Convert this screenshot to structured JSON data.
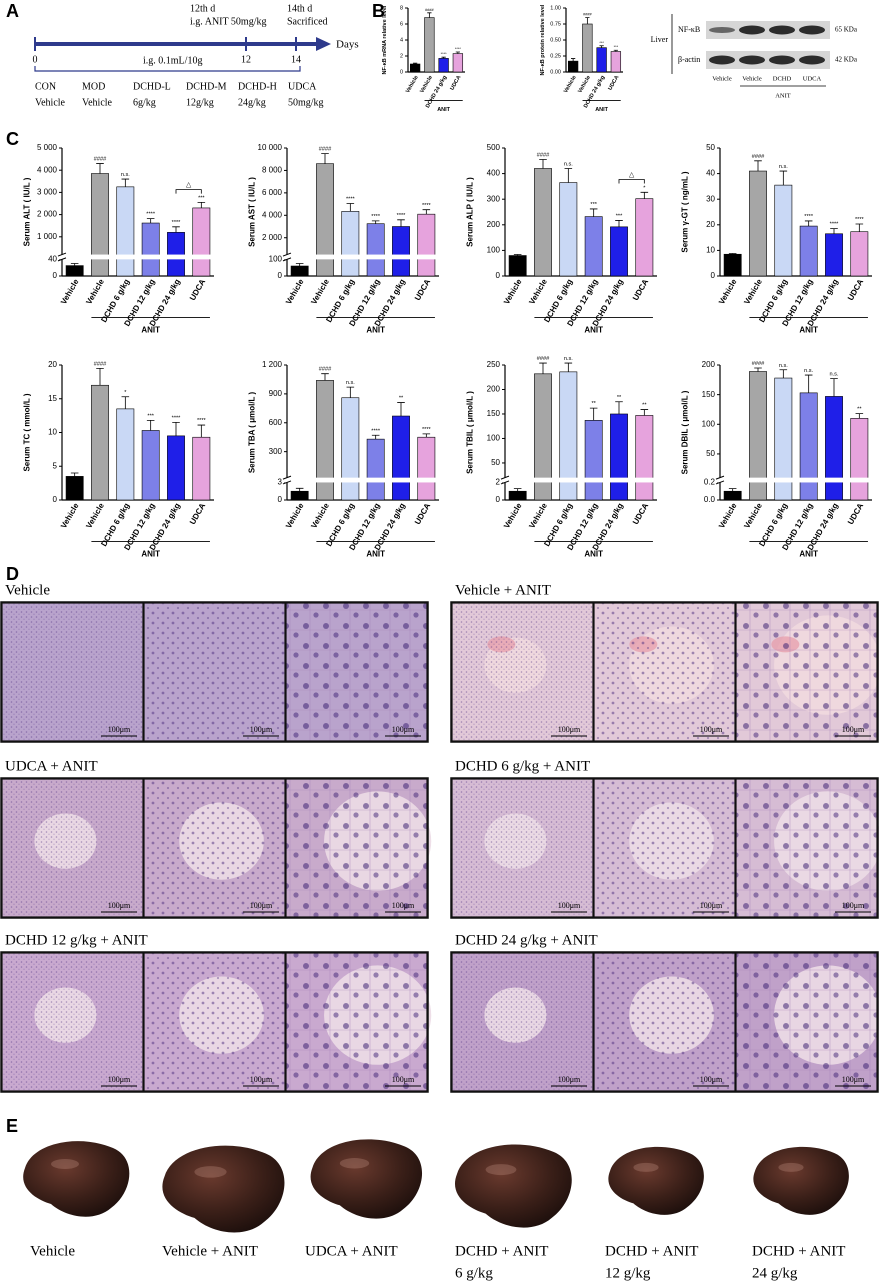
{
  "panel_labels": [
    "A",
    "B",
    "C",
    "D",
    "E"
  ],
  "timeline": {
    "events": [
      {
        "day": "12th d",
        "text": "i.g. ANIT 50mg/kg"
      },
      {
        "day": "14th d",
        "text": "Sacrificed"
      }
    ],
    "axis_label": "Days",
    "ticks": [
      "0",
      "12",
      "14"
    ],
    "dosing": "i.g. 0.1mL/10g",
    "groups": [
      {
        "code": "CON",
        "treatment": "Vehicle"
      },
      {
        "code": "MOD",
        "treatment": "Vehicle"
      },
      {
        "code": "DCHD-L",
        "treatment": "6g/kg"
      },
      {
        "code": "DCHD-M",
        "treatment": "12g/kg"
      },
      {
        "code": "DCHD-H",
        "treatment": "24g/kg"
      },
      {
        "code": "UDCA",
        "treatment": "50mg/kg"
      }
    ]
  },
  "chart_data": [
    {
      "type": "bar",
      "ylabel": "NF-κB mRNA relative level",
      "categories": [
        "Vehicle",
        "Vehicle",
        "DCHD 24 g/kg",
        "UDCA"
      ],
      "group_label": "ANIT",
      "values": [
        1.0,
        6.8,
        1.7,
        2.3
      ],
      "errors": [
        0.1,
        0.6,
        0.15,
        0.2
      ],
      "significance": [
        null,
        "####",
        "****",
        "****"
      ],
      "colors": [
        "#000000",
        "#a6a6a6",
        "#1f1fe8",
        "#e6a3dd"
      ],
      "ylim": [
        0,
        8
      ],
      "yticks": [
        0,
        2,
        4,
        6,
        8
      ]
    },
    {
      "type": "bar",
      "ylabel": "NF-κB protein relative level",
      "categories": [
        "Vehicle",
        "Vehicle",
        "DCHD 24 g/kg",
        "UDCA"
      ],
      "group_label": "ANIT",
      "values": [
        0.17,
        0.75,
        0.38,
        0.32
      ],
      "errors": [
        0.04,
        0.1,
        0.03,
        0.02
      ],
      "significance": [
        null,
        "####",
        "***",
        "***"
      ],
      "colors": [
        "#000000",
        "#a6a6a6",
        "#1f1fe8",
        "#e6a3dd"
      ],
      "ylim": [
        0,
        1
      ],
      "yticks": [
        {
          "value": 0,
          "label": "0.00"
        },
        0.25,
        {
          "value": 0.5,
          "label": "0.50"
        },
        0.75,
        {
          "value": 1,
          "label": "1.00"
        }
      ]
    },
    {
      "type": "bar",
      "ylabel": "Serum ALT ( IU/L )",
      "categories": [
        "Vehicle",
        "Vehicle",
        "DCHD 6 g/kg",
        "DCHD 12 g/kg",
        "DCHD 24 g/kg",
        "UDCA"
      ],
      "group_label": "ANIT",
      "values": [
        25,
        3850,
        3250,
        1620,
        1200,
        2300
      ],
      "errors": [
        5,
        450,
        350,
        200,
        250,
        250
      ],
      "significance": [
        null,
        "####",
        "n.s.",
        "****",
        "****",
        "***"
      ],
      "annotations": [
        {
          "text": "△",
          "between": [
            "DCHD 24 g/kg",
            "UDCA"
          ]
        }
      ],
      "colors": [
        "#000000",
        "#a6a6a6",
        "#c9d8f5",
        "#7d80e8",
        "#1f1fe8",
        "#e6a3dd"
      ],
      "ylim": [
        0,
        5000
      ],
      "ybreak": [
        40,
        200
      ],
      "yticks": [
        0,
        40,
        {
          "value": 1000,
          "label": "1 000"
        },
        {
          "value": 2000,
          "label": "2 000"
        },
        {
          "value": 3000,
          "label": "3 000"
        },
        {
          "value": 4000,
          "label": "4 000"
        },
        {
          "value": 5000,
          "label": "5 000"
        }
      ]
    },
    {
      "type": "bar",
      "ylabel": "Serum AST ( IU/L )",
      "categories": [
        "Vehicle",
        "Vehicle",
        "DCHD 6 g/kg",
        "DCHD 12 g/kg",
        "DCHD 24 g/kg",
        "UDCA"
      ],
      "group_label": "ANIT",
      "values": [
        60,
        8600,
        4350,
        3250,
        3000,
        4100
      ],
      "errors": [
        15,
        900,
        700,
        250,
        600,
        400
      ],
      "significance": [
        null,
        "####",
        "****",
        "****",
        "****",
        "****"
      ],
      "colors": [
        "#000000",
        "#a6a6a6",
        "#c9d8f5",
        "#7d80e8",
        "#1f1fe8",
        "#e6a3dd"
      ],
      "ylim": [
        0,
        10000
      ],
      "ybreak": [
        100,
        500
      ],
      "yticks": [
        0,
        100,
        {
          "value": 2000,
          "label": "2 000"
        },
        {
          "value": 4000,
          "label": "4 000"
        },
        {
          "value": 6000,
          "label": "6 000"
        },
        {
          "value": 8000,
          "label": "8 000"
        },
        {
          "value": 10000,
          "label": "10 000"
        }
      ]
    },
    {
      "type": "bar",
      "ylabel": "Serum ALP ( IU/L )",
      "categories": [
        "Vehicle",
        "Vehicle",
        "DCHD 6 g/kg",
        "DCHD 12 g/kg",
        "DCHD 24 g/kg",
        "UDCA"
      ],
      "group_label": "ANIT",
      "values": [
        80,
        420,
        365,
        232,
        192,
        302
      ],
      "errors": [
        4,
        35,
        55,
        30,
        25,
        25
      ],
      "significance": [
        null,
        "####",
        "n.s.",
        "***",
        "***",
        "*"
      ],
      "annotations": [
        {
          "text": "△",
          "between": [
            "DCHD 24 g/kg",
            "UDCA"
          ]
        }
      ],
      "colors": [
        "#000000",
        "#a6a6a6",
        "#c9d8f5",
        "#7d80e8",
        "#1f1fe8",
        "#e6a3dd"
      ],
      "ylim": [
        0,
        500
      ],
      "yticks": [
        0,
        100,
        200,
        300,
        400,
        500
      ]
    },
    {
      "type": "bar",
      "ylabel": "Serum γ-GT ( ng/mL )",
      "categories": [
        "Vehicle",
        "Vehicle",
        "DCHD 6 g/kg",
        "DCHD 12 g/kg",
        "DCHD 24 g/kg",
        "UDCA"
      ],
      "group_label": "ANIT",
      "values": [
        8.5,
        41,
        35.5,
        19.5,
        16.5,
        17.3
      ],
      "errors": [
        0.3,
        4,
        5.5,
        2,
        2,
        3
      ],
      "significance": [
        null,
        "####",
        "n.s.",
        "****",
        "****",
        "****"
      ],
      "colors": [
        "#000000",
        "#a6a6a6",
        "#c9d8f5",
        "#7d80e8",
        "#1f1fe8",
        "#e6a3dd"
      ],
      "ylim": [
        0,
        50
      ],
      "yticks": [
        0,
        10,
        20,
        30,
        40,
        50
      ]
    },
    {
      "type": "bar",
      "ylabel": "Serum TC ( mmol/L )",
      "categories": [
        "Vehicle",
        "Vehicle",
        "DCHD 6 g/kg",
        "DCHD 12 g/kg",
        "DCHD 24 g/kg",
        "UDCA"
      ],
      "group_label": "ANIT",
      "values": [
        3.5,
        17,
        13.5,
        10.3,
        9.5,
        9.3
      ],
      "errors": [
        0.5,
        2.5,
        1.8,
        1.5,
        2,
        1.8
      ],
      "significance": [
        null,
        "####",
        "*",
        "***",
        "****",
        "****"
      ],
      "colors": [
        "#000000",
        "#a6a6a6",
        "#c9d8f5",
        "#7d80e8",
        "#1f1fe8",
        "#e6a3dd"
      ],
      "ylim": [
        0,
        20
      ],
      "yticks": [
        0,
        5,
        10,
        15,
        20
      ]
    },
    {
      "type": "bar",
      "ylabel": "Serum TBA ( μmol/L )",
      "categories": [
        "Vehicle",
        "Vehicle",
        "DCHD 6 g/kg",
        "DCHD 12 g/kg",
        "DCHD 24 g/kg",
        "UDCA"
      ],
      "group_label": "ANIT",
      "values": [
        1.5,
        1040,
        860,
        430,
        670,
        450
      ],
      "errors": [
        0.5,
        70,
        110,
        40,
        140,
        35
      ],
      "significance": [
        null,
        "####",
        "n.s.",
        "****",
        "**",
        "****"
      ],
      "colors": [
        "#000000",
        "#a6a6a6",
        "#c9d8f5",
        "#7d80e8",
        "#1f1fe8",
        "#e6a3dd"
      ],
      "ylim": [
        0,
        1200
      ],
      "ybreak": [
        3,
        30
      ],
      "yticks": [
        0,
        3,
        300,
        600,
        900,
        {
          "value": 1200,
          "label": "1 200"
        }
      ]
    },
    {
      "type": "bar",
      "ylabel": "Serum TBIL ( μmol/L )",
      "categories": [
        "Vehicle",
        "Vehicle",
        "DCHD 6 g/kg",
        "DCHD 12 g/kg",
        "DCHD 24 g/kg",
        "UDCA"
      ],
      "group_label": "ANIT",
      "values": [
        1,
        232,
        236,
        137,
        150,
        147
      ],
      "errors": [
        0.3,
        22,
        18,
        25,
        25,
        12
      ],
      "significance": [
        null,
        "####",
        "n.s.",
        "**",
        "**",
        "**"
      ],
      "colors": [
        "#000000",
        "#a6a6a6",
        "#c9d8f5",
        "#7d80e8",
        "#1f1fe8",
        "#e6a3dd"
      ],
      "ylim": [
        0,
        250
      ],
      "ybreak": [
        2,
        20
      ],
      "yticks": [
        0,
        2,
        50,
        100,
        150,
        200,
        250
      ]
    },
    {
      "type": "bar",
      "ylabel": "Serum DBIL ( μmol/L )",
      "categories": [
        "Vehicle",
        "Vehicle",
        "DCHD 6 g/kg",
        "DCHD 12 g/kg",
        "DCHD 24 g/kg",
        "UDCA"
      ],
      "group_label": "ANIT",
      "values": [
        0.1,
        189,
        178,
        153,
        147,
        110
      ],
      "errors": [
        0.03,
        6,
        14,
        30,
        30,
        8
      ],
      "significance": [
        null,
        "####",
        "n.s.",
        "n.s.",
        "n.s.",
        "**"
      ],
      "colors": [
        "#000000",
        "#a6a6a6",
        "#c9d8f5",
        "#7d80e8",
        "#1f1fe8",
        "#e6a3dd"
      ],
      "ylim": [
        0,
        200
      ],
      "ybreak": [
        0.2,
        10
      ],
      "yticks": [
        {
          "value": 0,
          "label": "0.0"
        },
        0.2,
        50,
        100,
        150,
        200
      ]
    }
  ],
  "western_blot": {
    "tissue": "Liver",
    "bands": [
      {
        "name": "NF-κB",
        "size": "65 KDa"
      },
      {
        "name": "β-actin",
        "size": "42 KDa"
      }
    ],
    "lanes": [
      "Vehicle",
      "Vehicle",
      "DCHD",
      "UDCA"
    ],
    "group_label": "ANIT"
  },
  "histology": {
    "scale_bar": "100μm",
    "groups": [
      "Vehicle",
      "Vehicle + ANIT",
      "UDCA + ANIT",
      "DCHD 6 g/kg + ANIT",
      "DCHD 12 g/kg + ANIT",
      "DCHD 24 g/kg + ANIT"
    ]
  },
  "gross": {
    "groups": [
      [
        "Vehicle"
      ],
      [
        "Vehicle + ANIT"
      ],
      [
        "UDCA + ANIT"
      ],
      [
        "DCHD + ANIT",
        "6 g/kg"
      ],
      [
        "DCHD + ANIT",
        "12 g/kg"
      ],
      [
        "DCHD + ANIT",
        "24 g/kg"
      ]
    ]
  }
}
